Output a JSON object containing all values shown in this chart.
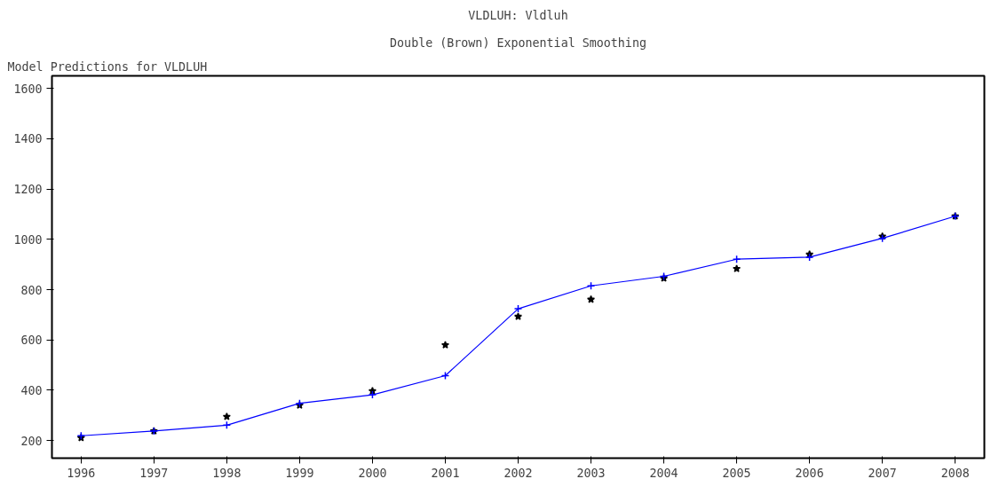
{
  "chart_data": {
    "type": "line",
    "title": "VLDLUH: Vldluh",
    "subtitle": "Double (Brown) Exponential Smoothing",
    "annotations": [
      "Model Predictions for VLDLUH"
    ],
    "x": [
      1996,
      1997,
      1998,
      1999,
      2000,
      2001,
      2002,
      2003,
      2004,
      2005,
      2006,
      2007,
      2008
    ],
    "series": [
      {
        "type": "scatter",
        "color": "#000000",
        "marker": "star",
        "values": [
          211,
          238,
          295,
          340,
          397,
          580,
          693,
          761,
          845,
          883,
          940,
          1012,
          1092
        ]
      },
      {
        "color": "#0000ff",
        "marker": "cross",
        "line_style": "solid",
        "values": [
          219,
          238,
          261,
          348,
          382,
          458,
          724,
          815,
          853,
          921,
          929,
          1004,
          1092
        ]
      }
    ],
    "xlim": [
      1995.6,
      2008.4
    ],
    "xticks": [
      1996,
      1997,
      1998,
      1999,
      2000,
      2001,
      2002,
      2003,
      2004,
      2005,
      2006,
      2007,
      2008
    ],
    "ylim": [
      130,
      1650
    ],
    "yticks": [
      200,
      400,
      600,
      800,
      1000,
      1200,
      1400,
      1600
    ],
    "grid": false
  }
}
